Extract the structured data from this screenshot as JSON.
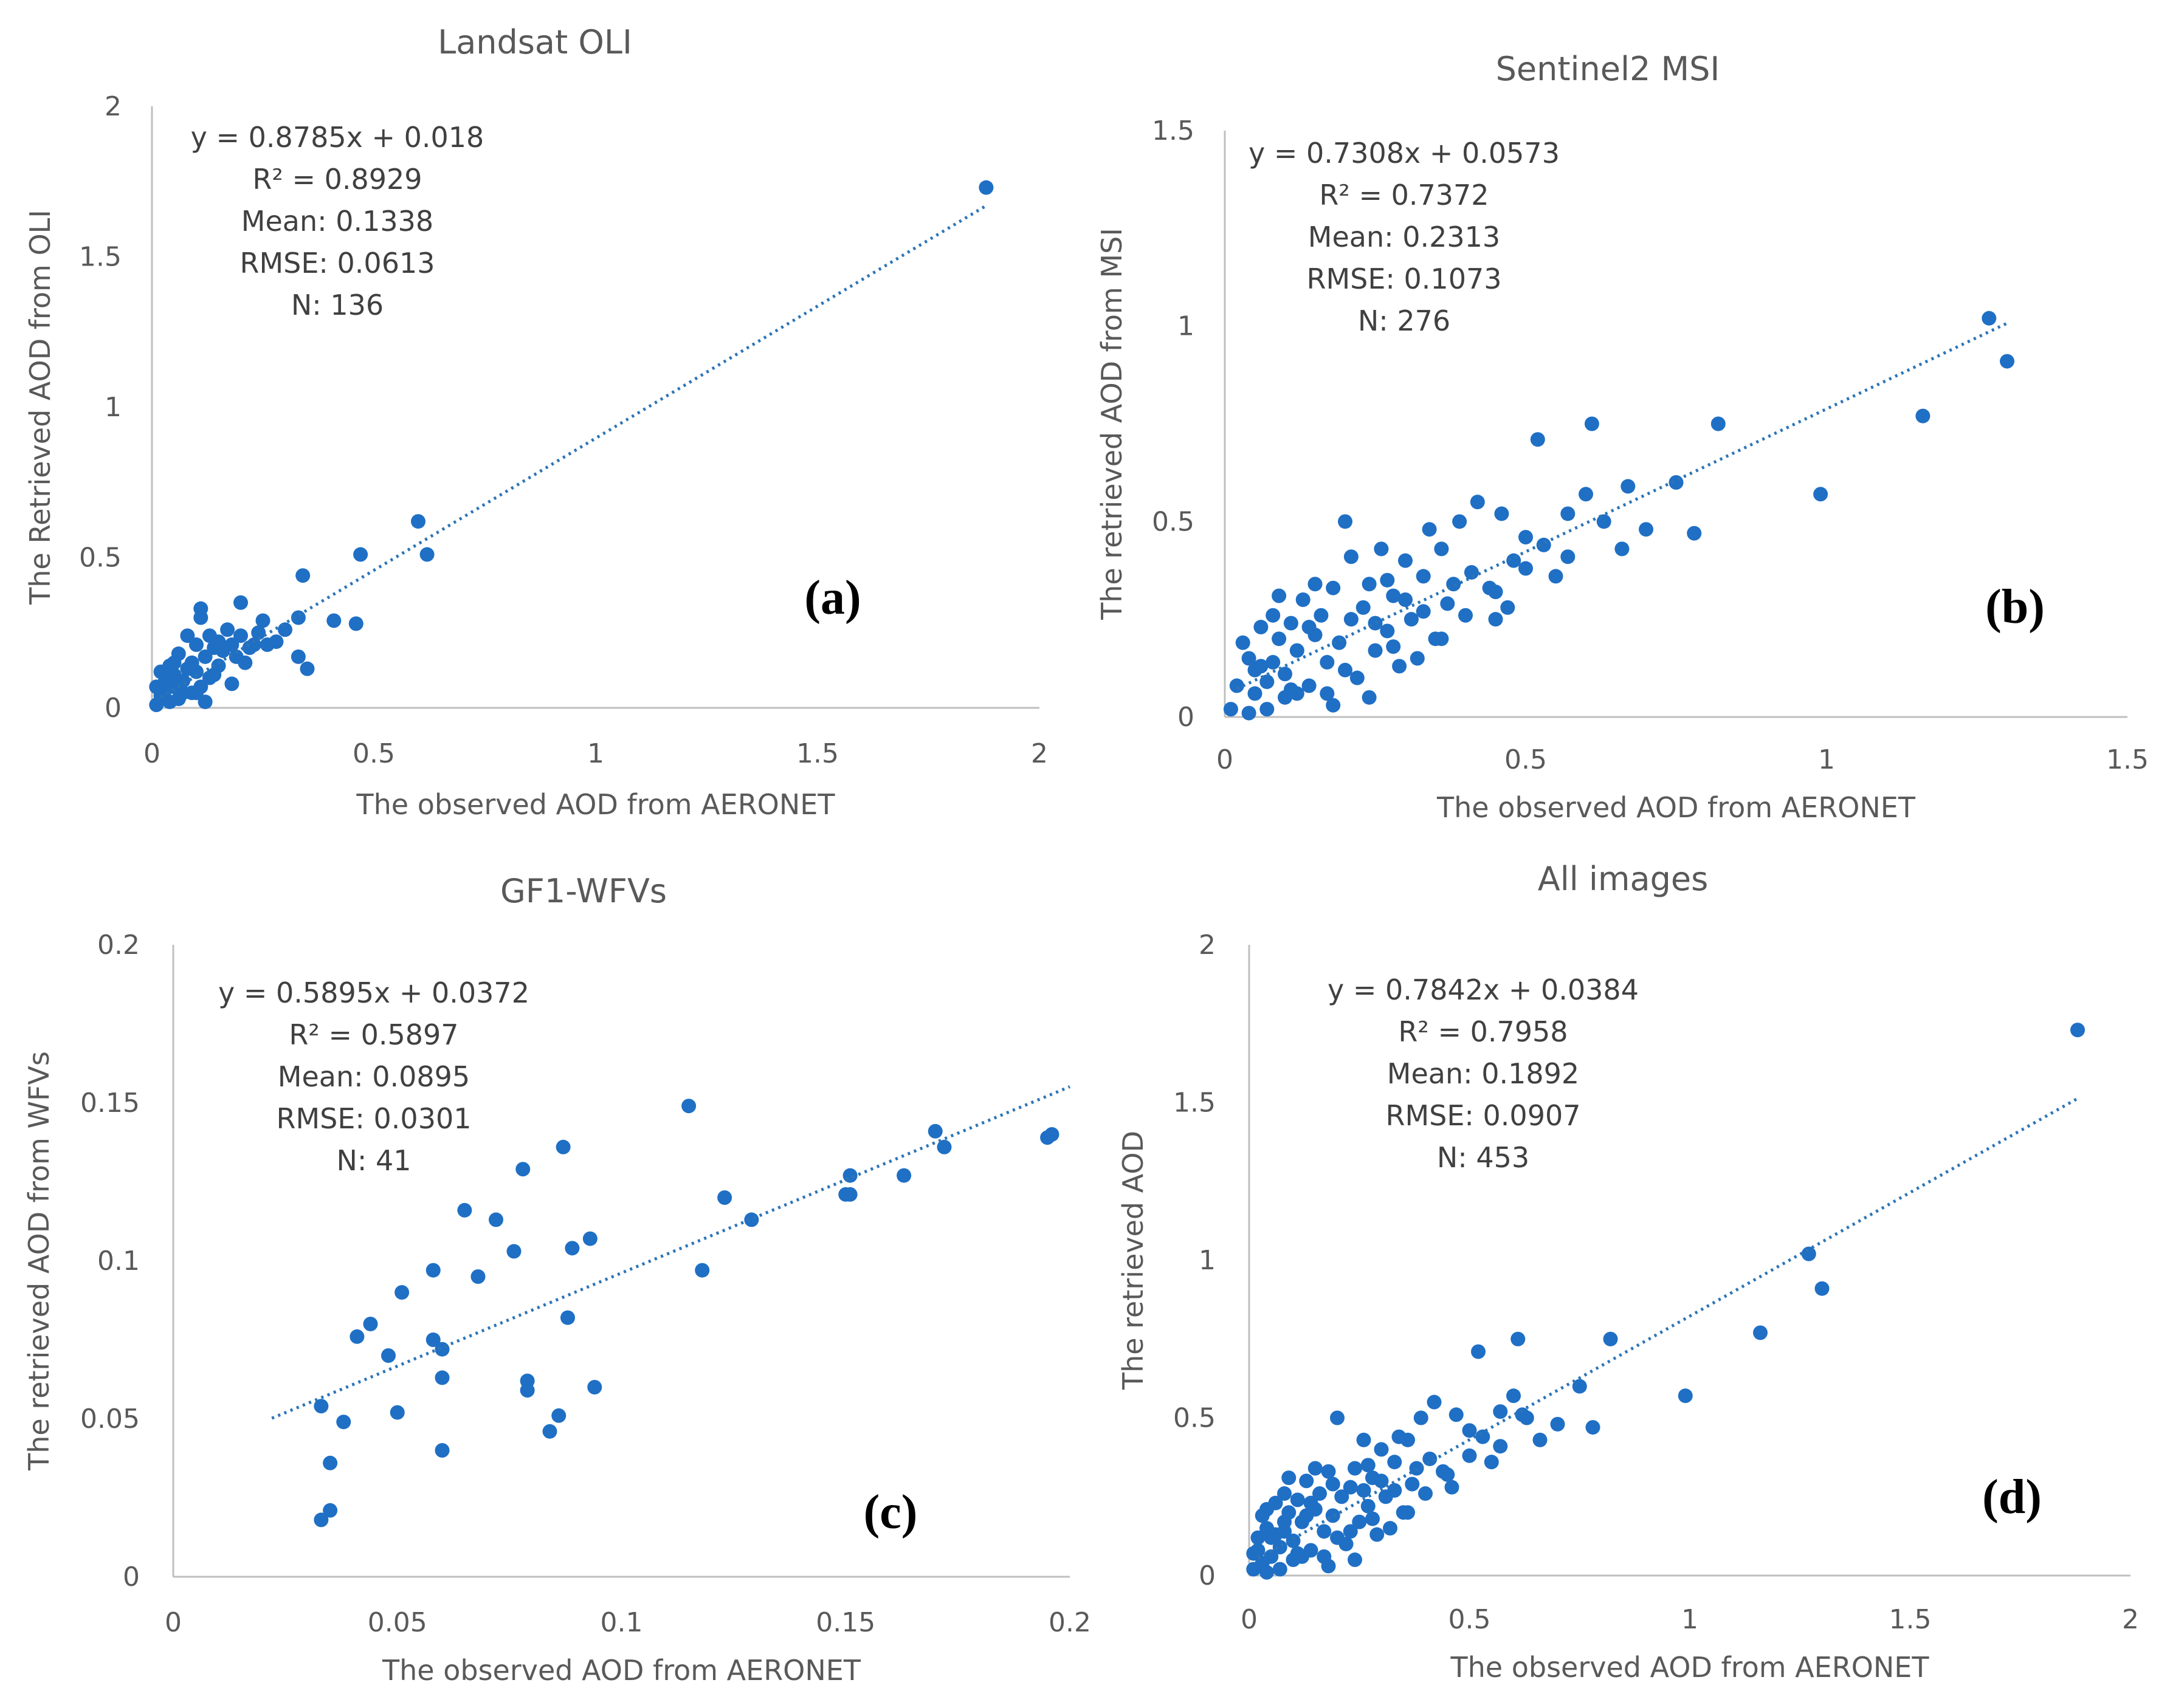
{
  "colors": {
    "point": "#1f6fc5",
    "trend": "#2e75b6",
    "axis": "#bfbfbf",
    "text": "#595959"
  },
  "chart_data": [
    {
      "type": "scatter",
      "panel": "(a)",
      "title": "Landsat OLI",
      "xlabel": "The observed AOD from AERONET",
      "ylabel": "The Retrieved AOD from OLI",
      "xlim": [
        0,
        2
      ],
      "ylim": [
        0,
        2
      ],
      "xticks": [
        0,
        0.5,
        1,
        1.5,
        2
      ],
      "yticks": [
        0,
        0.5,
        1,
        1.5,
        2
      ],
      "xtick_labels": [
        "0",
        "0.5",
        "1",
        "1.5",
        "2"
      ],
      "ytick_labels": [
        "0",
        "0.5",
        "1",
        "1.5",
        "2"
      ],
      "trendline": {
        "slope": 0.8785,
        "intercept": 0.018,
        "x_range": [
          0.02,
          1.88
        ]
      },
      "stats": [
        "y = 0.8785x + 0.018",
        "R² = 0.8929",
        "Mean: 0.1338",
        "RMSE: 0.0613",
        "N: 136"
      ],
      "points": [
        [
          1.88,
          1.73
        ],
        [
          0.6,
          0.62
        ],
        [
          0.62,
          0.51
        ],
        [
          0.47,
          0.51
        ],
        [
          0.34,
          0.44
        ],
        [
          0.46,
          0.28
        ],
        [
          0.41,
          0.29
        ],
        [
          0.35,
          0.13
        ],
        [
          0.33,
          0.17
        ],
        [
          0.33,
          0.3
        ],
        [
          0.3,
          0.26
        ],
        [
          0.28,
          0.22
        ],
        [
          0.25,
          0.29
        ],
        [
          0.24,
          0.25
        ],
        [
          0.23,
          0.21
        ],
        [
          0.22,
          0.2
        ],
        [
          0.2,
          0.35
        ],
        [
          0.2,
          0.24
        ],
        [
          0.19,
          0.17
        ],
        [
          0.18,
          0.21
        ],
        [
          0.17,
          0.26
        ],
        [
          0.16,
          0.19
        ],
        [
          0.15,
          0.14
        ],
        [
          0.14,
          0.2
        ],
        [
          0.13,
          0.24
        ],
        [
          0.13,
          0.1
        ],
        [
          0.12,
          0.17
        ],
        [
          0.11,
          0.3
        ],
        [
          0.11,
          0.33
        ],
        [
          0.11,
          0.07
        ],
        [
          0.1,
          0.12
        ],
        [
          0.1,
          0.21
        ],
        [
          0.09,
          0.05
        ],
        [
          0.08,
          0.24
        ],
        [
          0.08,
          0.13
        ],
        [
          0.07,
          0.09
        ],
        [
          0.06,
          0.18
        ],
        [
          0.06,
          0.03
        ],
        [
          0.05,
          0.11
        ],
        [
          0.05,
          0.07
        ],
        [
          0.04,
          0.14
        ],
        [
          0.04,
          0.02
        ],
        [
          0.03,
          0.06
        ],
        [
          0.03,
          0.09
        ],
        [
          0.02,
          0.04
        ],
        [
          0.02,
          0.12
        ],
        [
          0.01,
          0.07
        ],
        [
          0.01,
          0.01
        ],
        [
          0.05,
          0.15
        ],
        [
          0.07,
          0.05
        ],
        [
          0.12,
          0.02
        ],
        [
          0.09,
          0.15
        ],
        [
          0.15,
          0.22
        ],
        [
          0.18,
          0.08
        ],
        [
          0.21,
          0.15
        ],
        [
          0.26,
          0.21
        ],
        [
          0.14,
          0.11
        ],
        [
          0.03,
          0.11
        ],
        [
          0.06,
          0.09
        ],
        [
          0.1,
          0.05
        ]
      ]
    },
    {
      "type": "scatter",
      "panel": "(b)",
      "title": "Sentinel2 MSI",
      "xlabel": "The observed AOD from AERONET",
      "ylabel": "The retrieved AOD from MSI",
      "xlim": [
        0,
        1.5
      ],
      "ylim": [
        0,
        1.5
      ],
      "xticks": [
        0,
        0.5,
        1,
        1.5
      ],
      "yticks": [
        0,
        0.5,
        1,
        1.5
      ],
      "xtick_labels": [
        "0",
        "0.5",
        "1",
        "1.5"
      ],
      "ytick_labels": [
        "0",
        "0.5",
        "1",
        "1.5"
      ],
      "trendline": {
        "slope": 0.7308,
        "intercept": 0.0573,
        "x_range": [
          0.02,
          1.3
        ]
      },
      "stats": [
        "y = 0.7308x + 0.0573",
        "R² = 0.7372",
        "Mean: 0.2313",
        "RMSE: 0.1073",
        "N: 276"
      ],
      "points": [
        [
          1.27,
          1.02
        ],
        [
          1.3,
          0.91
        ],
        [
          1.16,
          0.77
        ],
        [
          0.99,
          0.57
        ],
        [
          0.82,
          0.75
        ],
        [
          0.75,
          0.6
        ],
        [
          0.78,
          0.47
        ],
        [
          0.7,
          0.48
        ],
        [
          0.67,
          0.59
        ],
        [
          0.66,
          0.43
        ],
        [
          0.61,
          0.75
        ],
        [
          0.6,
          0.57
        ],
        [
          0.57,
          0.52
        ],
        [
          0.55,
          0.36
        ],
        [
          0.52,
          0.71
        ],
        [
          0.5,
          0.46
        ],
        [
          0.48,
          0.4
        ],
        [
          0.46,
          0.52
        ],
        [
          0.45,
          0.32
        ],
        [
          0.42,
          0.55
        ],
        [
          0.41,
          0.37
        ],
        [
          0.39,
          0.5
        ],
        [
          0.37,
          0.29
        ],
        [
          0.36,
          0.43
        ],
        [
          0.35,
          0.2
        ],
        [
          0.34,
          0.48
        ],
        [
          0.33,
          0.36
        ],
        [
          0.31,
          0.25
        ],
        [
          0.3,
          0.4
        ],
        [
          0.29,
          0.13
        ],
        [
          0.28,
          0.31
        ],
        [
          0.27,
          0.22
        ],
        [
          0.26,
          0.43
        ],
        [
          0.25,
          0.17
        ],
        [
          0.24,
          0.34
        ],
        [
          0.23,
          0.28
        ],
        [
          0.22,
          0.1
        ],
        [
          0.21,
          0.25
        ],
        [
          0.2,
          0.5
        ],
        [
          0.19,
          0.19
        ],
        [
          0.18,
          0.33
        ],
        [
          0.18,
          0.03
        ],
        [
          0.17,
          0.14
        ],
        [
          0.16,
          0.26
        ],
        [
          0.15,
          0.21
        ],
        [
          0.14,
          0.08
        ],
        [
          0.13,
          0.3
        ],
        [
          0.12,
          0.17
        ],
        [
          0.11,
          0.24
        ],
        [
          0.1,
          0.11
        ],
        [
          0.1,
          0.05
        ],
        [
          0.09,
          0.2
        ],
        [
          0.08,
          0.14
        ],
        [
          0.07,
          0.02
        ],
        [
          0.07,
          0.09
        ],
        [
          0.06,
          0.23
        ],
        [
          0.05,
          0.06
        ],
        [
          0.04,
          0.15
        ],
        [
          0.04,
          0.01
        ],
        [
          0.03,
          0.19
        ],
        [
          0.02,
          0.08
        ],
        [
          0.01,
          0.02
        ],
        [
          0.05,
          0.12
        ],
        [
          0.08,
          0.26
        ],
        [
          0.12,
          0.06
        ],
        [
          0.15,
          0.34
        ],
        [
          0.2,
          0.12
        ],
        [
          0.24,
          0.05
        ],
        [
          0.27,
          0.35
        ],
        [
          0.3,
          0.3
        ],
        [
          0.32,
          0.15
        ],
        [
          0.36,
          0.2
        ],
        [
          0.4,
          0.26
        ],
        [
          0.44,
          0.33
        ],
        [
          0.47,
          0.28
        ],
        [
          0.5,
          0.38
        ],
        [
          0.53,
          0.44
        ],
        [
          0.57,
          0.41
        ],
        [
          0.63,
          0.5
        ],
        [
          0.45,
          0.25
        ],
        [
          0.38,
          0.34
        ],
        [
          0.25,
          0.24
        ],
        [
          0.21,
          0.41
        ],
        [
          0.14,
          0.23
        ],
        [
          0.09,
          0.31
        ],
        [
          0.06,
          0.13
        ],
        [
          0.11,
          0.07
        ],
        [
          0.17,
          0.06
        ],
        [
          0.28,
          0.18
        ],
        [
          0.33,
          0.27
        ]
      ]
    },
    {
      "type": "scatter",
      "panel": "(c)",
      "title": "GF1-WFVs",
      "xlabel": "The observed AOD from AERONET",
      "ylabel": "The retrieved AOD from WFVs",
      "xlim": [
        0,
        0.2
      ],
      "ylim": [
        0,
        0.2
      ],
      "xticks": [
        0,
        0.05,
        0.1,
        0.15,
        0.2
      ],
      "yticks": [
        0,
        0.05,
        0.1,
        0.15,
        0.2
      ],
      "xtick_labels": [
        "0",
        "0.05",
        "0.1",
        "0.15",
        "0.2"
      ],
      "ytick_labels": [
        "0",
        "0.05",
        "0.1",
        "0.15",
        "0.2"
      ],
      "trendline": {
        "slope": 0.5895,
        "intercept": 0.0372,
        "x_range": [
          0.022,
          0.2
        ]
      },
      "stats": [
        "y = 0.5895x + 0.0372",
        "R² = 0.5897",
        "Mean: 0.0895",
        "RMSE: 0.0301",
        "N: 41"
      ],
      "points": [
        [
          0.033,
          0.018
        ],
        [
          0.035,
          0.021
        ],
        [
          0.035,
          0.036
        ],
        [
          0.033,
          0.054
        ],
        [
          0.038,
          0.049
        ],
        [
          0.041,
          0.076
        ],
        [
          0.044,
          0.08
        ],
        [
          0.048,
          0.07
        ],
        [
          0.05,
          0.052
        ],
        [
          0.051,
          0.09
        ],
        [
          0.058,
          0.097
        ],
        [
          0.058,
          0.075
        ],
        [
          0.06,
          0.072
        ],
        [
          0.06,
          0.063
        ],
        [
          0.06,
          0.04
        ],
        [
          0.065,
          0.116
        ],
        [
          0.068,
          0.095
        ],
        [
          0.072,
          0.113
        ],
        [
          0.076,
          0.103
        ],
        [
          0.078,
          0.129
        ],
        [
          0.079,
          0.062
        ],
        [
          0.079,
          0.059
        ],
        [
          0.084,
          0.046
        ],
        [
          0.086,
          0.051
        ],
        [
          0.087,
          0.136
        ],
        [
          0.088,
          0.082
        ],
        [
          0.089,
          0.104
        ],
        [
          0.093,
          0.107
        ],
        [
          0.094,
          0.06
        ],
        [
          0.115,
          0.149
        ],
        [
          0.118,
          0.097
        ],
        [
          0.123,
          0.12
        ],
        [
          0.129,
          0.113
        ],
        [
          0.15,
          0.121
        ],
        [
          0.151,
          0.121
        ],
        [
          0.151,
          0.127
        ],
        [
          0.163,
          0.127
        ],
        [
          0.17,
          0.141
        ],
        [
          0.172,
          0.136
        ],
        [
          0.195,
          0.139
        ],
        [
          0.196,
          0.14
        ]
      ]
    },
    {
      "type": "scatter",
      "panel": "(d)",
      "title": "All images",
      "xlabel": "The observed AOD from AERONET",
      "ylabel": "The retrieved AOD",
      "xlim": [
        0,
        2
      ],
      "ylim": [
        0,
        2
      ],
      "xticks": [
        0,
        0.5,
        1,
        1.5,
        2
      ],
      "yticks": [
        0,
        0.5,
        1,
        1.5,
        2
      ],
      "xtick_labels": [
        "0",
        "0.5",
        "1",
        "1.5",
        "2"
      ],
      "ytick_labels": [
        "0",
        "0.5",
        "1",
        "1.5",
        "2"
      ],
      "trendline": {
        "slope": 0.7842,
        "intercept": 0.0384,
        "x_range": [
          0.02,
          1.88
        ]
      },
      "stats": [
        "y = 0.7842x + 0.0384",
        "R² = 0.7958",
        "Mean: 0.1892",
        "RMSE: 0.0907",
        "N: 453"
      ],
      "points": [
        [
          1.88,
          1.73
        ],
        [
          1.27,
          1.02
        ],
        [
          1.3,
          0.91
        ],
        [
          1.16,
          0.77
        ],
        [
          0.99,
          0.57
        ],
        [
          0.82,
          0.75
        ],
        [
          0.78,
          0.47
        ],
        [
          0.75,
          0.6
        ],
        [
          0.7,
          0.48
        ],
        [
          0.66,
          0.43
        ],
        [
          0.61,
          0.75
        ],
        [
          0.6,
          0.57
        ],
        [
          0.57,
          0.52
        ],
        [
          0.55,
          0.36
        ],
        [
          0.52,
          0.71
        ],
        [
          0.5,
          0.46
        ],
        [
          0.47,
          0.51
        ],
        [
          0.46,
          0.28
        ],
        [
          0.45,
          0.32
        ],
        [
          0.42,
          0.55
        ],
        [
          0.41,
          0.37
        ],
        [
          0.39,
          0.5
        ],
        [
          0.37,
          0.29
        ],
        [
          0.36,
          0.43
        ],
        [
          0.35,
          0.2
        ],
        [
          0.34,
          0.44
        ],
        [
          0.33,
          0.36
        ],
        [
          0.31,
          0.25
        ],
        [
          0.3,
          0.4
        ],
        [
          0.29,
          0.13
        ],
        [
          0.28,
          0.31
        ],
        [
          0.27,
          0.22
        ],
        [
          0.26,
          0.43
        ],
        [
          0.25,
          0.17
        ],
        [
          0.24,
          0.34
        ],
        [
          0.23,
          0.28
        ],
        [
          0.22,
          0.1
        ],
        [
          0.21,
          0.25
        ],
        [
          0.2,
          0.5
        ],
        [
          0.19,
          0.19
        ],
        [
          0.18,
          0.33
        ],
        [
          0.18,
          0.03
        ],
        [
          0.17,
          0.14
        ],
        [
          0.16,
          0.26
        ],
        [
          0.15,
          0.21
        ],
        [
          0.14,
          0.08
        ],
        [
          0.13,
          0.3
        ],
        [
          0.12,
          0.17
        ],
        [
          0.11,
          0.24
        ],
        [
          0.1,
          0.11
        ],
        [
          0.1,
          0.05
        ],
        [
          0.09,
          0.2
        ],
        [
          0.08,
          0.14
        ],
        [
          0.07,
          0.02
        ],
        [
          0.07,
          0.09
        ],
        [
          0.06,
          0.23
        ],
        [
          0.05,
          0.06
        ],
        [
          0.04,
          0.15
        ],
        [
          0.04,
          0.01
        ],
        [
          0.03,
          0.19
        ],
        [
          0.02,
          0.08
        ],
        [
          0.01,
          0.02
        ],
        [
          0.05,
          0.12
        ],
        [
          0.08,
          0.26
        ],
        [
          0.12,
          0.06
        ],
        [
          0.15,
          0.34
        ],
        [
          0.2,
          0.12
        ],
        [
          0.24,
          0.05
        ],
        [
          0.27,
          0.35
        ],
        [
          0.3,
          0.3
        ],
        [
          0.32,
          0.15
        ],
        [
          0.36,
          0.2
        ],
        [
          0.4,
          0.26
        ],
        [
          0.44,
          0.33
        ],
        [
          0.5,
          0.38
        ],
        [
          0.53,
          0.44
        ],
        [
          0.57,
          0.41
        ],
        [
          0.62,
          0.51
        ],
        [
          0.63,
          0.5
        ],
        [
          0.38,
          0.34
        ],
        [
          0.14,
          0.23
        ],
        [
          0.09,
          0.31
        ],
        [
          0.06,
          0.13
        ],
        [
          0.11,
          0.07
        ],
        [
          0.17,
          0.06
        ],
        [
          0.28,
          0.18
        ],
        [
          0.33,
          0.27
        ],
        [
          0.03,
          0.04
        ],
        [
          0.02,
          0.12
        ],
        [
          0.01,
          0.07
        ],
        [
          0.04,
          0.21
        ],
        [
          0.08,
          0.17
        ],
        [
          0.13,
          0.19
        ],
        [
          0.19,
          0.29
        ],
        [
          0.23,
          0.14
        ],
        [
          0.26,
          0.27
        ]
      ]
    }
  ]
}
